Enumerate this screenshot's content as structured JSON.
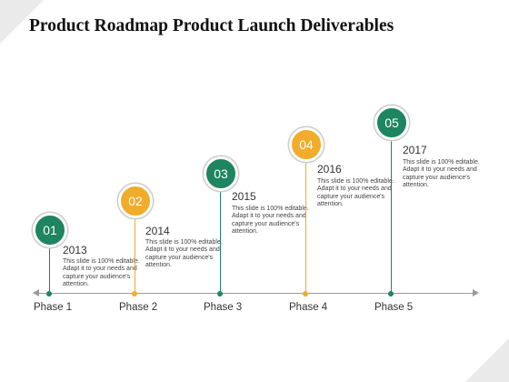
{
  "title": "Product Roadmap Product Launch Deliverables",
  "colors": {
    "green": "#1e8560",
    "orange": "#f2ac2b",
    "axis": "#9a9a9a"
  },
  "milestones": [
    {
      "number": "01",
      "year": "2013",
      "phase": "Phase 1",
      "color": "green",
      "description": "This slide is 100% editable. Adapt it to your needs and capture your audience's attention."
    },
    {
      "number": "02",
      "year": "2014",
      "phase": "Phase 2",
      "color": "orange",
      "description": "This slide is 100% editable. Adapt it to your needs and capture your audience's attention."
    },
    {
      "number": "03",
      "year": "2015",
      "phase": "Phase 3",
      "color": "green",
      "description": "This slide is 100% editable. Adapt it to your needs and capture your audience's attention."
    },
    {
      "number": "04",
      "year": "2016",
      "phase": "Phase 4",
      "color": "orange",
      "description": "This slide is 100% editable. Adapt it to your needs and capture your audience's attention."
    },
    {
      "number": "05",
      "year": "2017",
      "phase": "Phase 5",
      "color": "green",
      "description": "This slide is 100% editable. Adapt it to your needs and capture your audience's attention."
    }
  ]
}
